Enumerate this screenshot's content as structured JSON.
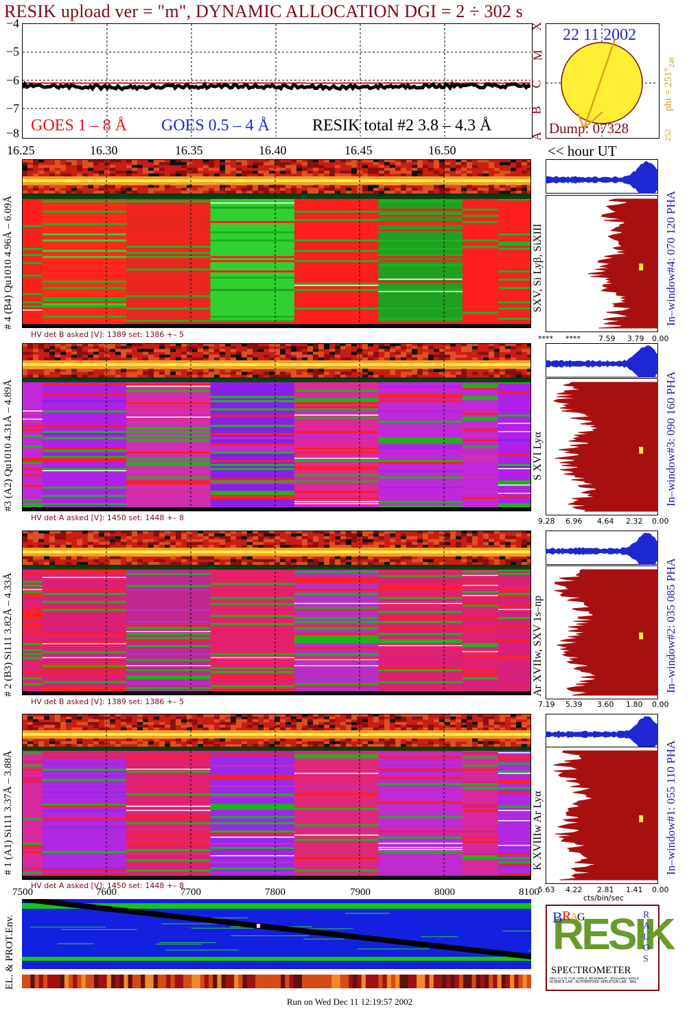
{
  "title": "RESIK upload ver = \"m\", DYNAMIC ALLOCATION  DGI =   2 ÷ 302 s",
  "goes_panel": {
    "y_ticks": [
      "−4",
      "−5",
      "−6",
      "−7",
      "−8"
    ],
    "legend_goes18": "GOES 1 – 8 Å",
    "legend_goes054": "GOES 0.5 – 4 Å",
    "legend_resik": "RESIK total #2  3.8 – 4.3 Å",
    "flare_classes": [
      "X",
      "M",
      "C",
      "B",
      "A"
    ],
    "colors": {
      "goes18": "#e0141e",
      "goes054": "#1e28d2",
      "resik": "#000000",
      "accent": "#7a0a14"
    }
  },
  "sun": {
    "date": "22 11 2002",
    "phi": "phi = 251°",
    "phi_sup": "248",
    "phi_low": "252",
    "dump": "Dump: 07328"
  },
  "time_axis": {
    "ticks": [
      "16.25",
      "16.30",
      "16.35",
      "16.40",
      "16.45",
      "16.50"
    ],
    "unit_label": "<< hour UT"
  },
  "channels": [
    {
      "left_label": "# 4 (B4) Qu1010 4.96Å – 6.09Å",
      "line_label": "SXV, Si Lyβ, SiXIII",
      "window_label": "In–window#4:  070 120 PHA",
      "hv": "HV det B asked [V]:  1389 set:  1386 +–   5",
      "scale": [
        "****",
        "****",
        "7.59",
        "3.79",
        "0.00"
      ]
    },
    {
      "left_label": "#3 (A2) Qu1010  4.31Å – 4.89Å",
      "line_label": "S XVI Lyα",
      "window_label": "In–window#3:  090 160 PHA",
      "hv": "HV det A asked [V]:  1450 set:  1448 +–   8",
      "scale": [
        "9.28",
        "6.96",
        "4.64",
        "2.32",
        "0.00"
      ]
    },
    {
      "left_label": "# 2 (B3) Si111  3.82Å – 4.33Å",
      "line_label": "Ar XVIIw, SXV 1s–np",
      "window_label": "In–window#2:  035 085 PHA",
      "hv": "HV det B asked [V]:  1389 set:  1386 +–   5",
      "scale": [
        "7.19",
        "5.39",
        "3.60",
        "1.80",
        "0.00"
      ]
    },
    {
      "left_label": "# 1 (A1) Si111  3.37Å –  3.88Å",
      "line_label": "K XVIIIw  Ar Lyα",
      "window_label": "In–window#1:  055 110 PHA",
      "hv": "HV det A asked [V]:  1450 set:  1448 +–   8",
      "scale": [
        "5.63",
        "4.22",
        "2.81",
        "1.41",
        "0.00"
      ],
      "scale_unit": "cts/bin/sec"
    }
  ],
  "bottom": {
    "x_ticks": [
      "7500",
      "7600",
      "7700",
      "7800",
      "7900",
      "8000",
      "8100"
    ],
    "y_label": "EL. & PROT.Env."
  },
  "logo": {
    "letters": "RESIK",
    "small_letters": [
      "B",
      "R",
      "A",
      "G",
      "S",
      "O",
      "L",
      "A",
      "R"
    ],
    "spectrometer": "SPECTROMETER",
    "fine_print": "INSTITUTE FOR SPACE RESEARCH · MULLARD SPACE SCIENCE LAB · RUTHERFORD APPLETON LAB · NRL"
  },
  "footer": "Run on Wed Dec 11 12:19:57 2002",
  "chart_data": {
    "type": "line",
    "title": "RESIK upload ver = \"m\", DYNAMIC ALLOCATION  DGI =   2 ÷ 302 s",
    "x": [
      "16.25",
      "16.30",
      "16.35",
      "16.40",
      "16.45",
      "16.50"
    ],
    "xlabel": "<< hour UT",
    "ylabel": "",
    "ylim": [
      -8,
      -4
    ],
    "series": [
      {
        "name": "GOES 1 – 8 Å",
        "values": [
          -6.1,
          -6.1,
          -6.1,
          -6.1,
          -6.1,
          -6.1
        ]
      },
      {
        "name": "RESIK total #2  3.8 – 4.3 Å",
        "values": [
          -6.2,
          -6.25,
          -6.2,
          -6.25,
          -6.2,
          -6.2
        ]
      }
    ]
  }
}
